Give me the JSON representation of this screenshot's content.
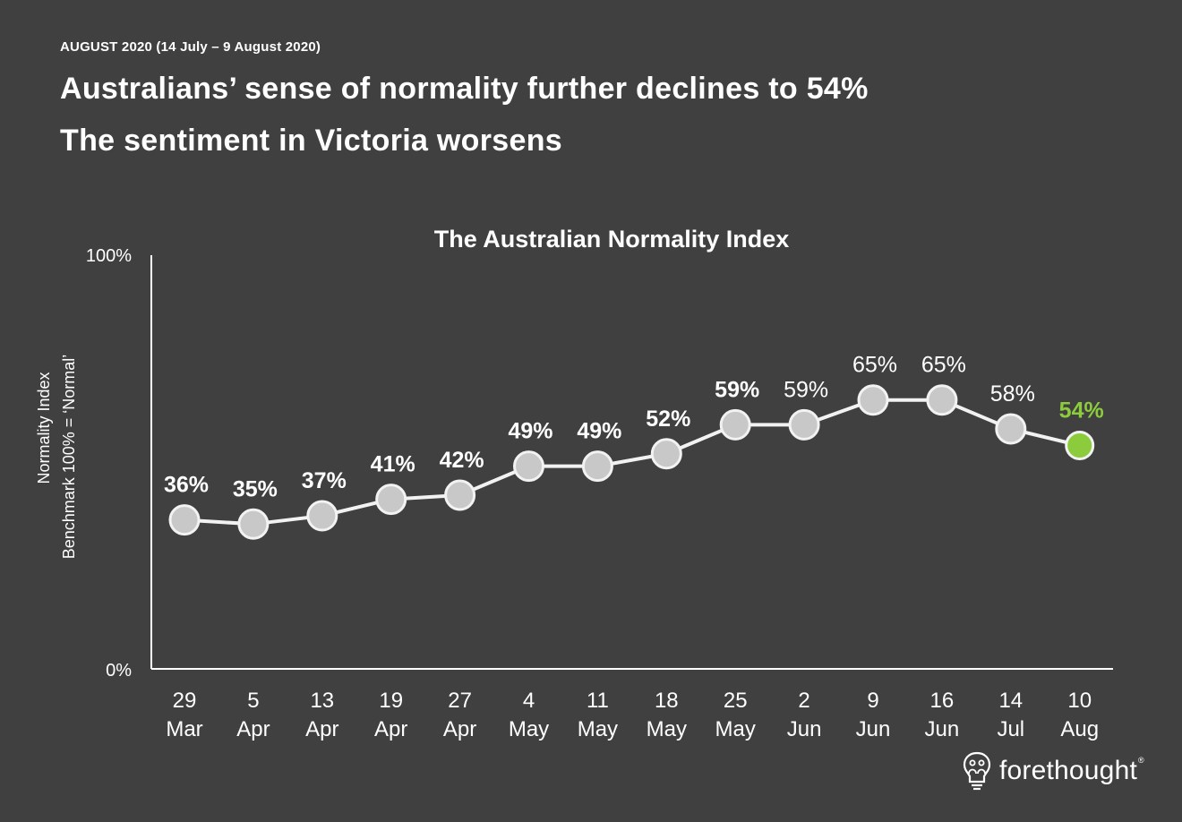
{
  "header": {
    "kicker": "AUGUST 2020 (14 July – 9 August 2020)",
    "headline_1": "Australians’ sense of normality further declines to 54%",
    "headline_2": "The sentiment in Victoria worsens"
  },
  "chart_data": {
    "type": "line",
    "title": "The Australian Normality Index",
    "ylabel_line1": "Normality Index",
    "ylabel_line2": "Benchmark 100% = ‘Normal’",
    "ylim": [
      0,
      100
    ],
    "ytick_labels": [
      "0%",
      "100%"
    ],
    "categories": [
      [
        "29",
        "Mar"
      ],
      [
        "5",
        "Apr"
      ],
      [
        "13",
        "Apr"
      ],
      [
        "19",
        "Apr"
      ],
      [
        "27",
        "Apr"
      ],
      [
        "4",
        "May"
      ],
      [
        "11",
        "May"
      ],
      [
        "18",
        "May"
      ],
      [
        "25",
        "May"
      ],
      [
        "2",
        "Jun"
      ],
      [
        "9",
        "Jun"
      ],
      [
        "16",
        "Jun"
      ],
      [
        "14",
        "Jul"
      ],
      [
        "10",
        "Aug"
      ]
    ],
    "values": [
      36,
      35,
      37,
      41,
      42,
      49,
      49,
      52,
      59,
      59,
      65,
      65,
      58,
      54
    ],
    "data_labels": [
      "36%",
      "35%",
      "37%",
      "41%",
      "42%",
      "49%",
      "49%",
      "52%",
      "59%",
      "59%",
      "65%",
      "65%",
      "58%",
      "54%"
    ],
    "label_bold": [
      true,
      true,
      true,
      true,
      true,
      true,
      true,
      true,
      true,
      false,
      false,
      false,
      false,
      true
    ],
    "highlight_index": 13,
    "colors": {
      "background": "#404040",
      "line": "#f2f2f2",
      "marker_fill": "#c8c8c8",
      "marker_stroke": "#f2f2f2",
      "highlight": "#8ccc3c",
      "text": "#ffffff"
    },
    "grid": false,
    "legend": "none"
  },
  "brand": {
    "name": "forethought",
    "mark": "®",
    "icon": "lightbulb-people-icon"
  }
}
